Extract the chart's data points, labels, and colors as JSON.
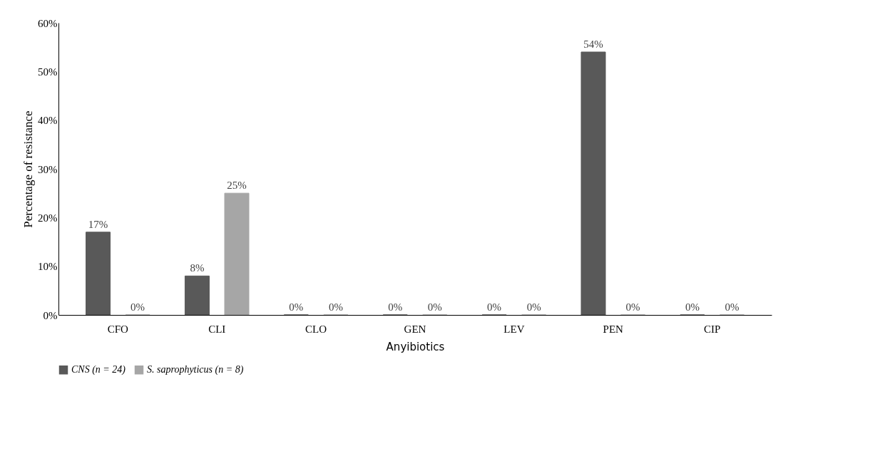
{
  "chart_data": {
    "type": "bar",
    "xlabel": "Anyibiotics",
    "ylabel": "Percentage of resistance",
    "categories": [
      "CFO",
      "CLI",
      "CLO",
      "GEN",
      "LEV",
      "PEN",
      "CIP"
    ],
    "series": [
      {
        "name": "CNS (n = 24)",
        "color": "#595959",
        "values": [
          17,
          8,
          0,
          0,
          0,
          54,
          0
        ],
        "value_labels": [
          "17%",
          "8%",
          "0%",
          "0%",
          "0%",
          "54%",
          "0%"
        ]
      },
      {
        "name": "S. saprophyticus (n = 8)",
        "color": "#a6a6a6",
        "values": [
          0,
          25,
          0,
          0,
          0,
          0,
          0
        ],
        "value_labels": [
          "0%",
          "25%",
          "0%",
          "0%",
          "0%",
          "0%",
          "0%"
        ]
      }
    ],
    "ylim": [
      0,
      60
    ],
    "yticks": [
      {
        "value": 0,
        "label": "0%"
      },
      {
        "value": 10,
        "label": "10%"
      },
      {
        "value": 20,
        "label": "20%"
      },
      {
        "value": 30,
        "label": "30%"
      },
      {
        "value": 40,
        "label": "40%"
      },
      {
        "value": 50,
        "label": "50%"
      },
      {
        "value": 60,
        "label": "60%"
      }
    ],
    "grid": false,
    "legend": "bottom"
  }
}
